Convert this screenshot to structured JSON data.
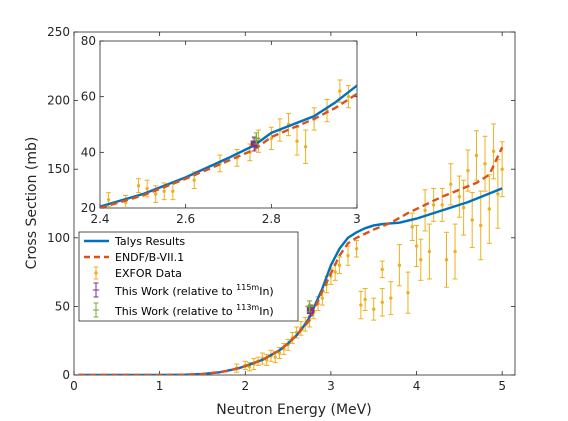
{
  "chart_data": [
    {
      "type": "line",
      "xlabel": "Neutron Energy (MeV)",
      "ylabel": "Cross Section (mb)",
      "xlim": [
        0,
        5.15
      ],
      "ylim": [
        0,
        250
      ],
      "xticks": [
        0,
        1,
        2,
        3,
        4,
        5
      ],
      "yticks": [
        0,
        50,
        100,
        150,
        200,
        250
      ],
      "legend": {
        "position": "lower-left",
        "entries": [
          {
            "label": "Talys Results"
          },
          {
            "label": "ENDF/B-VII.1"
          },
          {
            "label": "EXFOR Data"
          },
          {
            "label_prefix": "This Work (relative to ",
            "sup": "115m",
            "label_suffix": "In)"
          },
          {
            "label_prefix": "This Work (relative to ",
            "sup": "113m",
            "label_suffix": "In)"
          }
        ]
      },
      "colors": {
        "talys": "#0072BD",
        "endf": "#D95319",
        "exfor": "#EDB120",
        "work115": "#7E2F8E",
        "work113": "#77AC30"
      },
      "series": [
        {
          "key": "talys",
          "points": [
            [
              0.05,
              0
            ],
            [
              1.0,
              0
            ],
            [
              1.3,
              0.2
            ],
            [
              1.5,
              0.8
            ],
            [
              1.7,
              2
            ],
            [
              1.9,
              4.5
            ],
            [
              2.0,
              6.5
            ],
            [
              2.2,
              11
            ],
            [
              2.4,
              18
            ],
            [
              2.5,
              23
            ],
            [
              2.6,
              29
            ],
            [
              2.7,
              37
            ],
            [
              2.76,
              43
            ],
            [
              2.8,
              49
            ],
            [
              2.9,
              63
            ],
            [
              3.0,
              80
            ],
            [
              3.1,
              92
            ],
            [
              3.2,
              100
            ],
            [
              3.3,
              104
            ],
            [
              3.4,
              107
            ],
            [
              3.5,
              109
            ],
            [
              3.6,
              110
            ],
            [
              3.8,
              111
            ],
            [
              4.0,
              114
            ],
            [
              4.2,
              118
            ],
            [
              4.4,
              122
            ],
            [
              4.6,
              126
            ],
            [
              4.8,
              131
            ],
            [
              5.0,
              136
            ]
          ]
        },
        {
          "key": "endf",
          "points": [
            [
              0.05,
              0
            ],
            [
              1.2,
              0
            ],
            [
              1.5,
              0.6
            ],
            [
              1.8,
              3
            ],
            [
              2.0,
              6.5
            ],
            [
              2.2,
              11
            ],
            [
              2.4,
              18
            ],
            [
              2.5,
              23
            ],
            [
              2.6,
              29
            ],
            [
              2.7,
              36
            ],
            [
              2.76,
              41
            ],
            [
              2.8,
              47
            ],
            [
              2.9,
              61
            ],
            [
              3.0,
              74
            ],
            [
              3.1,
              87
            ],
            [
              3.2,
              96
            ],
            [
              3.3,
              100
            ],
            [
              3.5,
              106
            ],
            [
              3.7,
              111
            ],
            [
              3.9,
              118
            ],
            [
              4.1,
              124
            ],
            [
              4.3,
              130
            ],
            [
              4.5,
              135
            ],
            [
              4.7,
              140
            ],
            [
              4.85,
              146
            ],
            [
              5.0,
              166
            ]
          ]
        },
        {
          "key": "exfor",
          "points": [
            [
              1.9,
              5,
              3
            ],
            [
              2.0,
              7,
              3
            ],
            [
              2.05,
              6,
              3
            ],
            [
              2.1,
              8,
              4
            ],
            [
              2.15,
              10,
              3
            ],
            [
              2.2,
              12,
              4
            ],
            [
              2.25,
              11,
              4
            ],
            [
              2.3,
              14,
              4
            ],
            [
              2.35,
              13,
              4
            ],
            [
              2.4,
              16,
              4
            ],
            [
              2.45,
              19,
              4
            ],
            [
              2.5,
              22,
              4
            ],
            [
              2.55,
              27,
              4
            ],
            [
              2.6,
              31,
              4
            ],
            [
              2.65,
              34,
              5
            ],
            [
              2.7,
              37,
              5
            ],
            [
              2.75,
              40,
              5
            ],
            [
              2.8,
              46,
              5
            ],
            [
              2.85,
              52,
              5
            ],
            [
              2.9,
              56,
              5
            ],
            [
              2.95,
              66,
              6
            ],
            [
              3.0,
              72,
              6
            ],
            [
              3.05,
              75,
              6
            ],
            [
              3.1,
              80,
              6
            ],
            [
              3.2,
              87,
              7
            ],
            [
              3.3,
              92,
              6
            ],
            [
              3.35,
              51,
              10
            ],
            [
              3.4,
              55,
              8
            ],
            [
              3.5,
              48,
              8
            ],
            [
              3.6,
              77,
              6
            ],
            [
              3.6,
              53,
              10
            ],
            [
              3.7,
              56,
              12
            ],
            [
              3.8,
              80,
              15
            ],
            [
              3.9,
              60,
              15
            ],
            [
              3.95,
              108,
              10
            ],
            [
              4.0,
              94,
              15
            ],
            [
              4.05,
              84,
              15
            ],
            [
              4.1,
              120,
              15
            ],
            [
              4.15,
              90,
              20
            ],
            [
              4.2,
              124,
              12
            ],
            [
              4.3,
              124,
              12
            ],
            [
              4.35,
              84,
              20
            ],
            [
              4.4,
              139,
              15
            ],
            [
              4.45,
              90,
              20
            ],
            [
              4.5,
              130,
              15
            ],
            [
              4.55,
              122,
              20
            ],
            [
              4.6,
              149,
              15
            ],
            [
              4.65,
              113,
              20
            ],
            [
              4.7,
              160,
              18
            ],
            [
              4.75,
              109,
              25
            ],
            [
              4.8,
              154,
              20
            ],
            [
              4.85,
              121,
              25
            ],
            [
              4.9,
              163,
              20
            ],
            [
              4.95,
              132,
              25
            ],
            [
              5.0,
              150,
              20
            ]
          ]
        },
        {
          "key": "work115",
          "points": [
            [
              2.76,
              47,
              4
            ]
          ]
        },
        {
          "key": "work113",
          "points": [
            [
              2.75,
              50,
              4
            ]
          ]
        }
      ]
    },
    {
      "type": "line",
      "xlim": [
        2.4,
        3.0
      ],
      "ylim": [
        20,
        80
      ],
      "xticks": [
        2.4,
        2.6,
        2.8,
        3.0
      ],
      "xtick_labels": [
        "2.4",
        "2.6",
        "2.8",
        "3"
      ],
      "yticks": [
        20,
        40,
        60,
        80
      ],
      "series": [
        {
          "key": "talys",
          "points": [
            [
              2.4,
              20.5
            ],
            [
              2.5,
              25
            ],
            [
              2.6,
              31
            ],
            [
              2.7,
              38
            ],
            [
              2.76,
              42.5
            ],
            [
              2.8,
              47
            ],
            [
              2.9,
              53
            ],
            [
              2.95,
              58
            ],
            [
              3.0,
              64
            ]
          ]
        },
        {
          "key": "endf",
          "points": [
            [
              2.4,
              20
            ],
            [
              2.5,
              24.5
            ],
            [
              2.6,
              30.5
            ],
            [
              2.7,
              37
            ],
            [
              2.76,
              41
            ],
            [
              2.8,
              45.5
            ],
            [
              2.9,
              52
            ],
            [
              2.95,
              56
            ],
            [
              3.0,
              61
            ]
          ]
        },
        {
          "key": "exfor",
          "points": [
            [
              2.42,
              23,
              2.5
            ],
            [
              2.46,
              22,
              2.5
            ],
            [
              2.49,
              28,
              2.5
            ],
            [
              2.51,
              27,
              3
            ],
            [
              2.53,
              25,
              3
            ],
            [
              2.55,
              26,
              3
            ],
            [
              2.57,
              26,
              3
            ],
            [
              2.62,
              30,
              3
            ],
            [
              2.68,
              36,
              3
            ],
            [
              2.72,
              38,
              3
            ],
            [
              2.75,
              40,
              3
            ],
            [
              2.77,
              44,
              4
            ],
            [
              2.8,
              45,
              4
            ],
            [
              2.82,
              48,
              4
            ],
            [
              2.84,
              50,
              4
            ],
            [
              2.86,
              44,
              5
            ],
            [
              2.88,
              42,
              6
            ],
            [
              2.9,
              52,
              4
            ],
            [
              2.93,
              55,
              4
            ],
            [
              2.96,
              62,
              4
            ],
            [
              2.98,
              60,
              4
            ]
          ]
        },
        {
          "key": "work115",
          "points": [
            [
              2.76,
              43,
              2.5
            ]
          ]
        },
        {
          "key": "work113",
          "points": [
            [
              2.765,
              45,
              2
            ]
          ]
        }
      ]
    }
  ]
}
